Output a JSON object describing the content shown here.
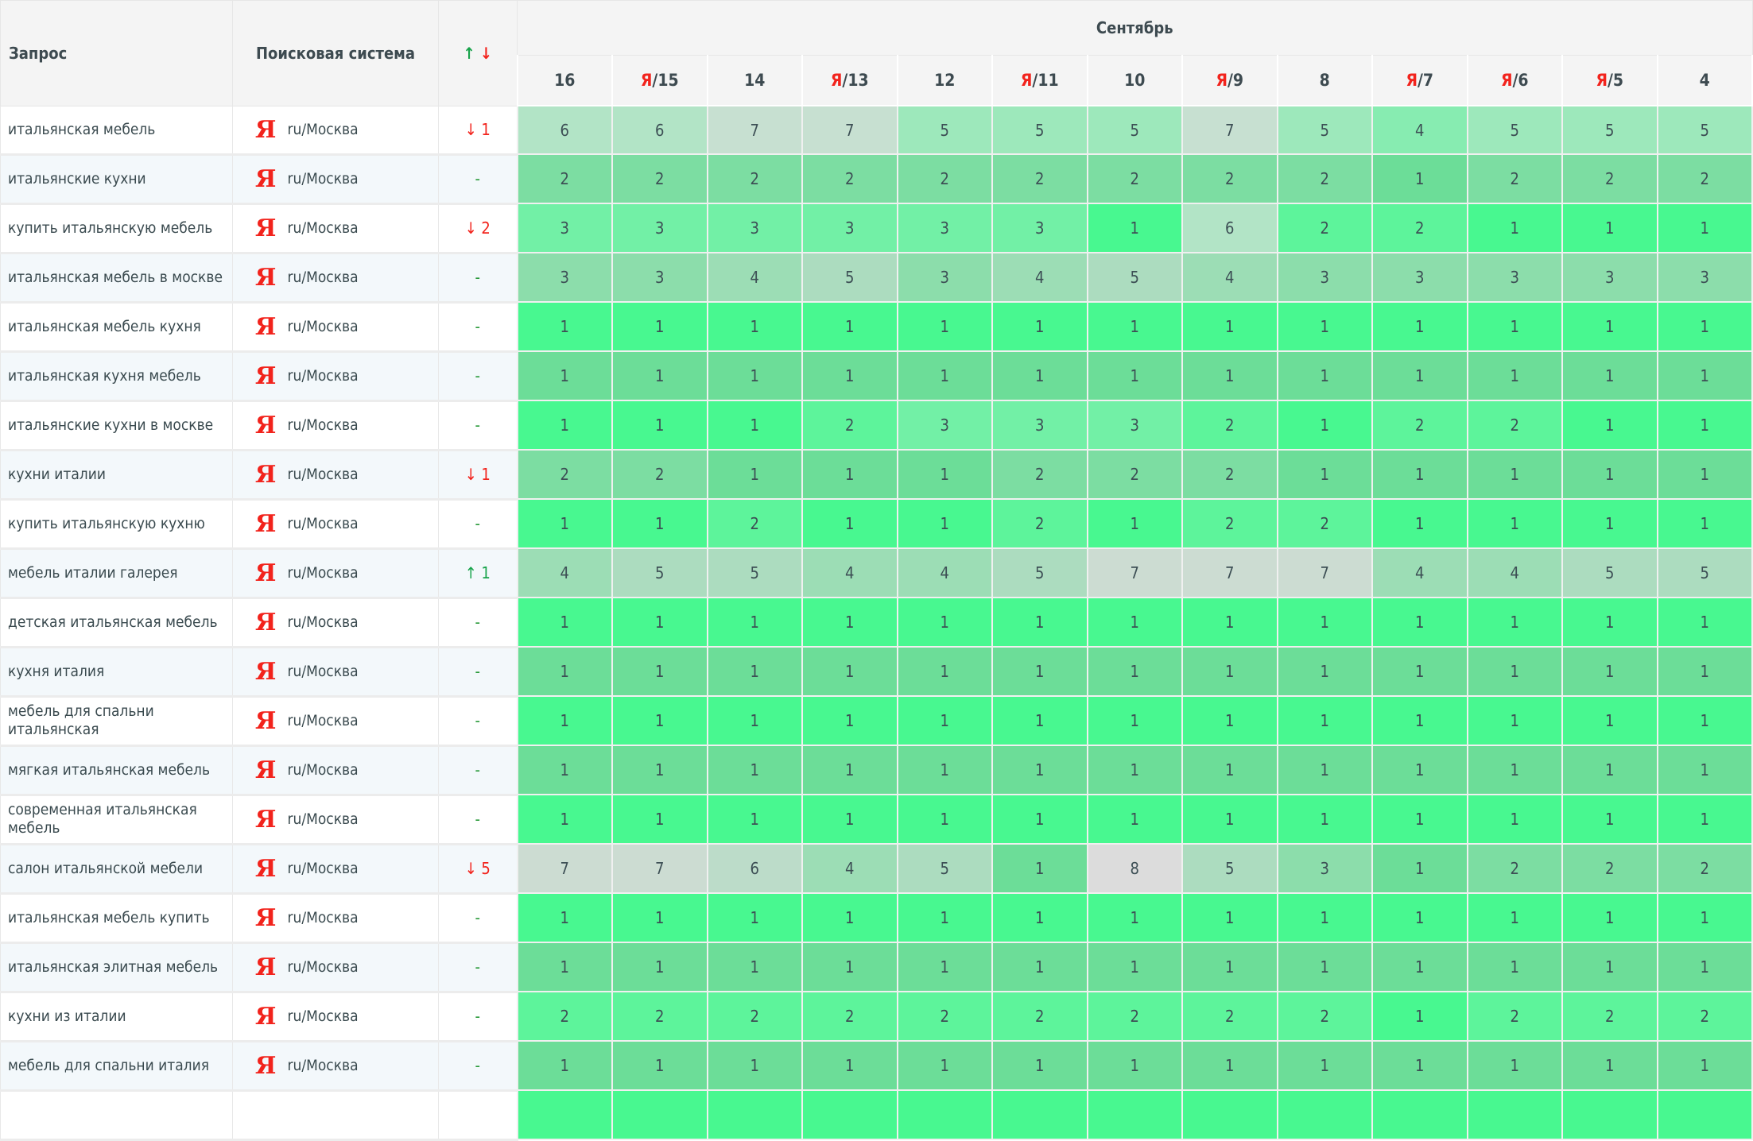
{
  "header": {
    "query_label": "Запрос",
    "engine_label": "Поисковая система",
    "change_up": "↑",
    "change_down": "↓",
    "month": "Сентябрь",
    "dates": [
      {
        "mark": "",
        "day": "16"
      },
      {
        "mark": "Я",
        "day": "15"
      },
      {
        "mark": "",
        "day": "14"
      },
      {
        "mark": "Я",
        "day": "13"
      },
      {
        "mark": "",
        "day": "12"
      },
      {
        "mark": "Я",
        "day": "11"
      },
      {
        "mark": "",
        "day": "10"
      },
      {
        "mark": "Я",
        "day": "9"
      },
      {
        "mark": "",
        "day": "8"
      },
      {
        "mark": "Я",
        "day": "7"
      },
      {
        "mark": "Я",
        "day": "6"
      },
      {
        "mark": "Я",
        "day": "5"
      },
      {
        "mark": "",
        "day": "4"
      }
    ]
  },
  "engine_icon": "yandex-logo",
  "engine_logo_text": "Я",
  "colors": {
    "down": "#f2231c",
    "up": "#17a34a",
    "top_position": "#48f890",
    "worst_position": "#dcdcdc"
  },
  "rows": [
    {
      "query": "итальянская мебель",
      "region": "ru/Москва",
      "dir": "down",
      "change": "1",
      "values": [
        6,
        6,
        7,
        7,
        5,
        5,
        5,
        7,
        5,
        4,
        5,
        5,
        5
      ]
    },
    {
      "query": "итальянские кухни",
      "region": "ru/Москва",
      "dir": "same",
      "change": "-",
      "values": [
        2,
        2,
        2,
        2,
        2,
        2,
        2,
        2,
        2,
        1,
        2,
        2,
        2
      ]
    },
    {
      "query": "купить итальянскую мебель",
      "region": "ru/Москва",
      "dir": "down",
      "change": "2",
      "values": [
        3,
        3,
        3,
        3,
        3,
        3,
        1,
        6,
        2,
        2,
        1,
        1,
        1
      ]
    },
    {
      "query": "итальянская мебель в москве",
      "region": "ru/Москва",
      "dir": "same",
      "change": "-",
      "values": [
        3,
        3,
        4,
        5,
        3,
        4,
        5,
        4,
        3,
        3,
        3,
        3,
        3
      ]
    },
    {
      "query": "итальянская мебель кухня",
      "region": "ru/Москва",
      "dir": "same",
      "change": "-",
      "values": [
        1,
        1,
        1,
        1,
        1,
        1,
        1,
        1,
        1,
        1,
        1,
        1,
        1
      ]
    },
    {
      "query": "итальянская кухня мебель",
      "region": "ru/Москва",
      "dir": "same",
      "change": "-",
      "values": [
        1,
        1,
        1,
        1,
        1,
        1,
        1,
        1,
        1,
        1,
        1,
        1,
        1
      ]
    },
    {
      "query": "итальянские кухни в москве",
      "region": "ru/Москва",
      "dir": "same",
      "change": "-",
      "values": [
        1,
        1,
        1,
        2,
        3,
        3,
        3,
        2,
        1,
        2,
        2,
        1,
        1
      ]
    },
    {
      "query": "кухни италии",
      "region": "ru/Москва",
      "dir": "down",
      "change": "1",
      "values": [
        2,
        2,
        1,
        1,
        1,
        2,
        2,
        2,
        1,
        1,
        1,
        1,
        1
      ]
    },
    {
      "query": "купить итальянскую кухню",
      "region": "ru/Москва",
      "dir": "same",
      "change": "-",
      "values": [
        1,
        1,
        2,
        1,
        1,
        2,
        1,
        2,
        2,
        1,
        1,
        1,
        1
      ]
    },
    {
      "query": "мебель италии галерея",
      "region": "ru/Москва",
      "dir": "up",
      "change": "1",
      "values": [
        4,
        5,
        5,
        4,
        4,
        5,
        7,
        7,
        7,
        4,
        4,
        5,
        5
      ]
    },
    {
      "query": "детская итальянская мебель",
      "region": "ru/Москва",
      "dir": "same",
      "change": "-",
      "values": [
        1,
        1,
        1,
        1,
        1,
        1,
        1,
        1,
        1,
        1,
        1,
        1,
        1
      ]
    },
    {
      "query": "кухня италия",
      "region": "ru/Москва",
      "dir": "same",
      "change": "-",
      "values": [
        1,
        1,
        1,
        1,
        1,
        1,
        1,
        1,
        1,
        1,
        1,
        1,
        1
      ]
    },
    {
      "query": "мебель для спальни итальянская",
      "region": "ru/Москва",
      "dir": "same",
      "change": "-",
      "values": [
        1,
        1,
        1,
        1,
        1,
        1,
        1,
        1,
        1,
        1,
        1,
        1,
        1
      ]
    },
    {
      "query": "мягкая итальянская мебель",
      "region": "ru/Москва",
      "dir": "same",
      "change": "-",
      "values": [
        1,
        1,
        1,
        1,
        1,
        1,
        1,
        1,
        1,
        1,
        1,
        1,
        1
      ]
    },
    {
      "query": "современная итальянская мебель",
      "region": "ru/Москва",
      "dir": "same",
      "change": "-",
      "values": [
        1,
        1,
        1,
        1,
        1,
        1,
        1,
        1,
        1,
        1,
        1,
        1,
        1
      ]
    },
    {
      "query": "салон итальянской мебели",
      "region": "ru/Москва",
      "dir": "down",
      "change": "5",
      "values": [
        7,
        7,
        6,
        4,
        5,
        1,
        8,
        5,
        3,
        1,
        2,
        2,
        2
      ]
    },
    {
      "query": "итальянская мебель купить",
      "region": "ru/Москва",
      "dir": "same",
      "change": "-",
      "values": [
        1,
        1,
        1,
        1,
        1,
        1,
        1,
        1,
        1,
        1,
        1,
        1,
        1
      ]
    },
    {
      "query": "итальянская элитная мебель",
      "region": "ru/Москва",
      "dir": "same",
      "change": "-",
      "values": [
        1,
        1,
        1,
        1,
        1,
        1,
        1,
        1,
        1,
        1,
        1,
        1,
        1
      ]
    },
    {
      "query": "кухни из италии",
      "region": "ru/Москва",
      "dir": "same",
      "change": "-",
      "values": [
        2,
        2,
        2,
        2,
        2,
        2,
        2,
        2,
        2,
        1,
        2,
        2,
        2
      ]
    },
    {
      "query": "мебель для спальни италия",
      "region": "ru/Москва",
      "dir": "same",
      "change": "-",
      "values": [
        1,
        1,
        1,
        1,
        1,
        1,
        1,
        1,
        1,
        1,
        1,
        1,
        1
      ]
    }
  ]
}
